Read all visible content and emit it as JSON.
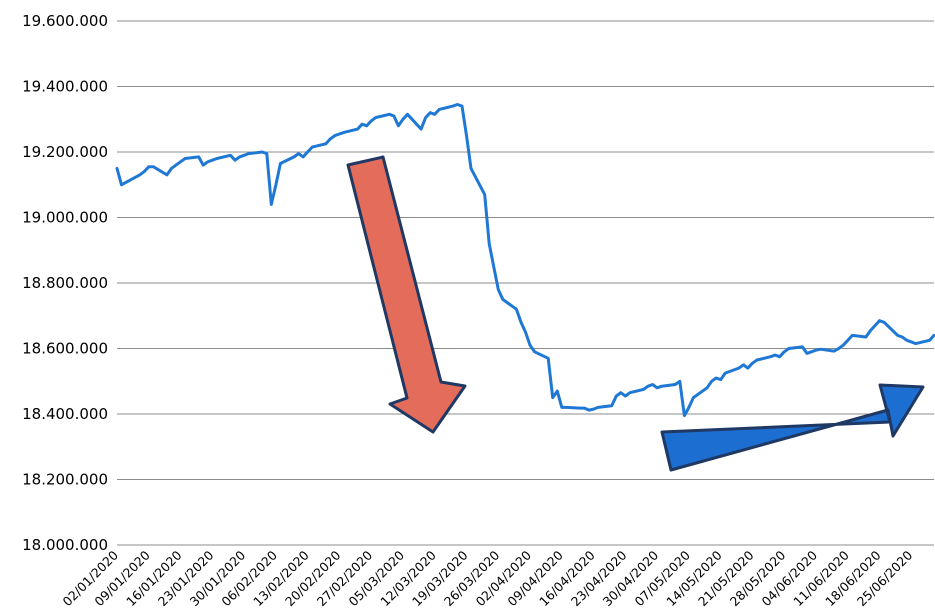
{
  "chart_data": {
    "type": "line",
    "title": "",
    "xlabel": "",
    "ylabel": "",
    "ylim": [
      18000000,
      19600000
    ],
    "grid": true,
    "legend": "none",
    "yticks": [
      {
        "value": 18000000,
        "label": "18.000.000"
      },
      {
        "value": 18200000,
        "label": "18.200.000"
      },
      {
        "value": 18400000,
        "label": "18.400.000"
      },
      {
        "value": 18600000,
        "label": "18.600.000"
      },
      {
        "value": 18800000,
        "label": "18.800.000"
      },
      {
        "value": 19000000,
        "label": "19.000.000"
      },
      {
        "value": 19200000,
        "label": "19.200.000"
      },
      {
        "value": 19400000,
        "label": "19.400.000"
      },
      {
        "value": 19600000,
        "label": "19.600.000"
      }
    ],
    "xticks": [
      "02/01/2020",
      "09/01/2020",
      "16/01/2020",
      "23/01/2020",
      "30/01/2020",
      "06/02/2020",
      "13/02/2020",
      "20/02/2020",
      "27/02/2020",
      "05/03/2020",
      "12/03/2020",
      "19/03/2020",
      "26/03/2020",
      "02/04/2020",
      "09/04/2020",
      "16/04/2020",
      "23/04/2020",
      "30/04/2020",
      "07/05/2020",
      "14/05/2020",
      "21/05/2020",
      "28/05/2020",
      "04/06/2020",
      "11/06/2020",
      "18/06/2020",
      "25/06/2020"
    ],
    "series": [
      {
        "color": "#1f78d4",
        "points": [
          [
            "02/01/2020",
            19150000
          ],
          [
            "03/01/2020",
            19100000
          ],
          [
            "07/01/2020",
            19130000
          ],
          [
            "08/01/2020",
            19140000
          ],
          [
            "09/01/2020",
            19155000
          ],
          [
            "10/01/2020",
            19155000
          ],
          [
            "13/01/2020",
            19130000
          ],
          [
            "14/01/2020",
            19150000
          ],
          [
            "15/01/2020",
            19160000
          ],
          [
            "16/01/2020",
            19170000
          ],
          [
            "17/01/2020",
            19180000
          ],
          [
            "20/01/2020",
            19185000
          ],
          [
            "21/01/2020",
            19160000
          ],
          [
            "22/01/2020",
            19170000
          ],
          [
            "23/01/2020",
            19175000
          ],
          [
            "24/01/2020",
            19180000
          ],
          [
            "27/01/2020",
            19190000
          ],
          [
            "28/01/2020",
            19175000
          ],
          [
            "29/01/2020",
            19185000
          ],
          [
            "30/01/2020",
            19190000
          ],
          [
            "31/01/2020",
            19195000
          ],
          [
            "03/02/2020",
            19200000
          ],
          [
            "04/02/2020",
            19195000
          ],
          [
            "05/02/2020",
            19040000
          ],
          [
            "06/02/2020",
            19100000
          ],
          [
            "07/02/2020",
            19165000
          ],
          [
            "10/02/2020",
            19185000
          ],
          [
            "11/02/2020",
            19195000
          ],
          [
            "12/02/2020",
            19185000
          ],
          [
            "13/02/2020",
            19200000
          ],
          [
            "14/02/2020",
            19215000
          ],
          [
            "17/02/2020",
            19225000
          ],
          [
            "18/02/2020",
            19240000
          ],
          [
            "19/02/2020",
            19250000
          ],
          [
            "20/02/2020",
            19255000
          ],
          [
            "21/02/2020",
            19260000
          ],
          [
            "24/02/2020",
            19270000
          ],
          [
            "25/02/2020",
            19285000
          ],
          [
            "26/02/2020",
            19280000
          ],
          [
            "27/02/2020",
            19295000
          ],
          [
            "28/02/2020",
            19305000
          ],
          [
            "02/03/2020",
            19315000
          ],
          [
            "03/03/2020",
            19310000
          ],
          [
            "04/03/2020",
            19280000
          ],
          [
            "05/03/2020",
            19300000
          ],
          [
            "06/03/2020",
            19315000
          ],
          [
            "09/03/2020",
            19270000
          ],
          [
            "10/03/2020",
            19305000
          ],
          [
            "11/03/2020",
            19320000
          ],
          [
            "12/03/2020",
            19315000
          ],
          [
            "13/03/2020",
            19330000
          ],
          [
            "16/03/2020",
            19340000
          ],
          [
            "17/03/2020",
            19345000
          ],
          [
            "18/03/2020",
            19340000
          ],
          [
            "19/03/2020",
            19250000
          ],
          [
            "20/03/2020",
            19150000
          ],
          [
            "23/03/2020",
            19070000
          ],
          [
            "24/03/2020",
            18920000
          ],
          [
            "25/03/2020",
            18850000
          ],
          [
            "26/03/2020",
            18780000
          ],
          [
            "27/03/2020",
            18750000
          ],
          [
            "30/03/2020",
            18720000
          ],
          [
            "31/03/2020",
            18680000
          ],
          [
            "01/04/2020",
            18650000
          ],
          [
            "02/04/2020",
            18610000
          ],
          [
            "03/04/2020",
            18590000
          ],
          [
            "06/04/2020",
            18570000
          ],
          [
            "07/04/2020",
            18450000
          ],
          [
            "08/04/2020",
            18470000
          ],
          [
            "09/04/2020",
            18420000
          ],
          [
            "10/04/2020",
            18420000
          ],
          [
            "13/04/2020",
            18418000
          ],
          [
            "14/04/2020",
            18418000
          ],
          [
            "15/04/2020",
            18412000
          ],
          [
            "16/04/2020",
            18415000
          ],
          [
            "17/04/2020",
            18420000
          ],
          [
            "20/04/2020",
            18425000
          ],
          [
            "21/04/2020",
            18455000
          ],
          [
            "22/04/2020",
            18465000
          ],
          [
            "23/04/2020",
            18455000
          ],
          [
            "24/04/2020",
            18465000
          ],
          [
            "27/04/2020",
            18475000
          ],
          [
            "28/04/2020",
            18485000
          ],
          [
            "29/04/2020",
            18490000
          ],
          [
            "30/04/2020",
            18480000
          ],
          [
            "01/05/2020",
            18485000
          ],
          [
            "04/05/2020",
            18490000
          ],
          [
            "05/05/2020",
            18500000
          ],
          [
            "06/05/2020",
            18395000
          ],
          [
            "07/05/2020",
            18420000
          ],
          [
            "08/05/2020",
            18450000
          ],
          [
            "11/05/2020",
            18480000
          ],
          [
            "12/05/2020",
            18500000
          ],
          [
            "13/05/2020",
            18510000
          ],
          [
            "14/05/2020",
            18505000
          ],
          [
            "15/05/2020",
            18525000
          ],
          [
            "18/05/2020",
            18540000
          ],
          [
            "19/05/2020",
            18550000
          ],
          [
            "20/05/2020",
            18540000
          ],
          [
            "21/05/2020",
            18555000
          ],
          [
            "22/05/2020",
            18565000
          ],
          [
            "25/05/2020",
            18575000
          ],
          [
            "26/05/2020",
            18580000
          ],
          [
            "27/05/2020",
            18575000
          ],
          [
            "28/05/2020",
            18590000
          ],
          [
            "29/05/2020",
            18600000
          ],
          [
            "01/06/2020",
            18605000
          ],
          [
            "02/06/2020",
            18585000
          ],
          [
            "03/06/2020",
            18590000
          ],
          [
            "04/06/2020",
            18595000
          ],
          [
            "05/06/2020",
            18598000
          ],
          [
            "08/06/2020",
            18592000
          ],
          [
            "09/06/2020",
            18600000
          ],
          [
            "10/06/2020",
            18610000
          ],
          [
            "11/06/2020",
            18625000
          ],
          [
            "12/06/2020",
            18640000
          ],
          [
            "15/06/2020",
            18635000
          ],
          [
            "16/06/2020",
            18655000
          ],
          [
            "17/06/2020",
            18670000
          ],
          [
            "18/06/2020",
            18685000
          ],
          [
            "19/06/2020",
            18680000
          ],
          [
            "22/06/2020",
            18640000
          ],
          [
            "23/06/2020",
            18635000
          ],
          [
            "24/06/2020",
            18625000
          ],
          [
            "25/06/2020",
            18620000
          ],
          [
            "26/06/2020",
            18615000
          ],
          [
            "29/06/2020",
            18625000
          ],
          [
            "30/06/2020",
            18640000
          ]
        ]
      }
    ],
    "annotations": [
      {
        "type": "arrow",
        "direction": "down",
        "color": "#e46c5a",
        "outline": "#1f3864"
      },
      {
        "type": "arrow",
        "direction": "up-right",
        "color": "#1c6fd1",
        "outline": "#1f3864"
      }
    ]
  }
}
